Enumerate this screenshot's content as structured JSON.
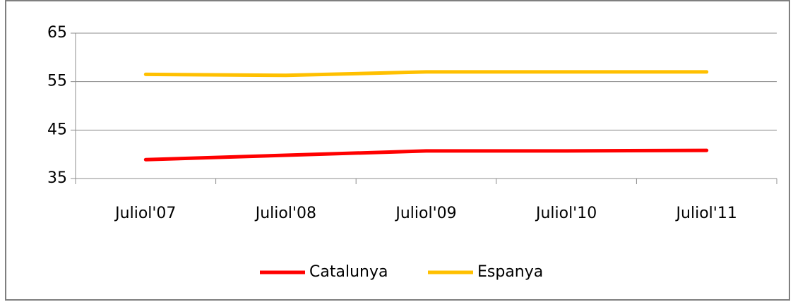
{
  "chart_data": {
    "type": "line",
    "categories": [
      "Juliol'07",
      "Juliol'08",
      "Juliol'09",
      "Juliol'10",
      "Juliol'11"
    ],
    "series": [
      {
        "name": "Catalunya",
        "color": "#ff0000",
        "values": [
          38.9,
          39.8,
          40.7,
          40.7,
          40.8
        ]
      },
      {
        "name": "Espanya",
        "color": "#ffc000",
        "values": [
          56.5,
          56.3,
          57.0,
          57.0,
          57.0
        ]
      }
    ],
    "ylim": [
      35,
      65
    ],
    "yticks": [
      35,
      45,
      55,
      65
    ],
    "grid": true,
    "legend": "bottom"
  }
}
